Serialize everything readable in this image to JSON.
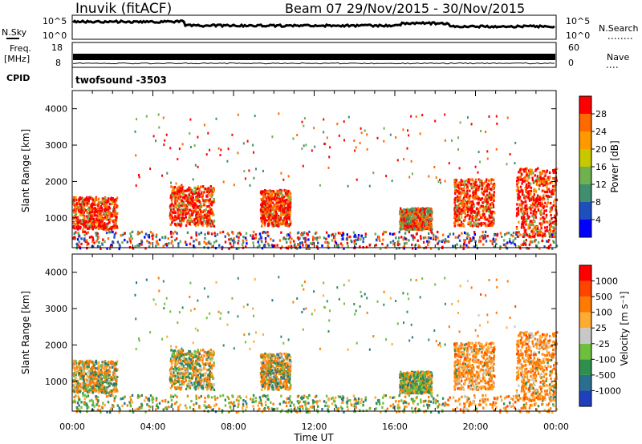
{
  "header": {
    "station": "Inuvik (fitACF)",
    "beam": "Beam 07",
    "date_range": "29/Nov/2015 - 30/Nov/2015"
  },
  "summary_panels": {
    "nsky_label": "N.Sky",
    "nsky_ticks": [
      "10^5",
      "10^0"
    ],
    "nsearch_label": "N.Search",
    "nsearch_ticks": [
      "10^5",
      "10^0"
    ],
    "freq_label_1": "Freq.",
    "freq_label_2": "[MHz]",
    "freq_ticks": [
      "18",
      "8"
    ],
    "nave_label": "Nave",
    "nave_ticks": [
      "60",
      "0"
    ],
    "cpid_label": "CPID",
    "cpid_value": "twofsound -3503"
  },
  "chart_data": [
    {
      "type": "heatmap",
      "panel": "power",
      "ylabel": "Slant Range [km]",
      "yticks": [
        1000,
        2000,
        3000,
        4000
      ],
      "ylim": [
        180,
        4500
      ],
      "xlim_hours": [
        0,
        24
      ],
      "colorbar_label": "Power [dB]",
      "colorbar_ticks": [
        "4",
        "8",
        "12",
        "16",
        "20",
        "24",
        "28"
      ],
      "colorbar_colors": [
        "#0000ff",
        "#1f4fbf",
        "#3f8f6f",
        "#6fb04f",
        "#c8c800",
        "#ff9900",
        "#ff6a00",
        "#ff0000"
      ],
      "scatter_regions": [
        {
          "t": [
            0,
            2.2
          ],
          "r": [
            700,
            1600
          ],
          "level": "high"
        },
        {
          "t": [
            4.8,
            7.0
          ],
          "r": [
            800,
            1900
          ],
          "level": "high"
        },
        {
          "t": [
            9.3,
            10.8
          ],
          "r": [
            800,
            1800
          ],
          "level": "high"
        },
        {
          "t": [
            16.2,
            17.8
          ],
          "r": [
            700,
            1300
          ],
          "level": "medium"
        },
        {
          "t": [
            18.9,
            20.9
          ],
          "r": [
            800,
            2100
          ],
          "level": "high"
        },
        {
          "t": [
            22.0,
            24.0
          ],
          "r": [
            500,
            2400
          ],
          "level": "high"
        },
        {
          "t": [
            0,
            24.0
          ],
          "r": [
            180,
            650
          ],
          "level": "low"
        }
      ]
    },
    {
      "type": "heatmap",
      "panel": "velocity",
      "ylabel": "Slant Range [km]",
      "yticks": [
        1000,
        2000,
        3000,
        4000
      ],
      "ylim": [
        180,
        4500
      ],
      "xlim_hours": [
        0,
        24
      ],
      "colorbar_label": "Velocity [m s⁻¹]",
      "colorbar_ticks": [
        "1000",
        "500",
        "100",
        "25",
        "-25",
        "-100",
        "-500",
        "-1000"
      ],
      "colorbar_colors": [
        "#1f3fbf",
        "#2a6f8f",
        "#2f8f4f",
        "#6fbf3f",
        "#c8c8c8",
        "#ffaa33",
        "#ff7a00",
        "#ff4400",
        "#ff0000"
      ]
    }
  ],
  "x_axis": {
    "ticks": [
      "00:00",
      "04:00",
      "08:00",
      "12:00",
      "16:00",
      "20:00",
      "00:00"
    ],
    "label": "Time UT"
  }
}
